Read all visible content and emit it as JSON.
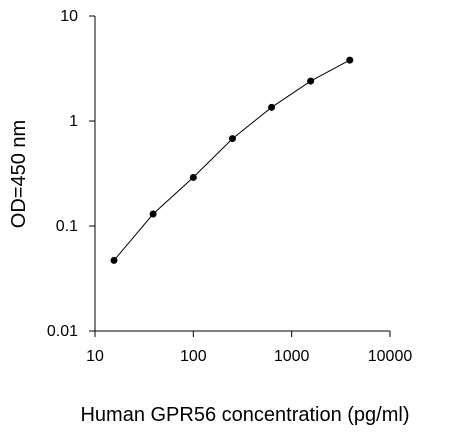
{
  "chart_data": {
    "type": "line",
    "title": "",
    "xlabel": "Human GPR56 concentration (pg/ml)",
    "ylabel": "OD=450 nm",
    "x_scale": "log",
    "y_scale": "log",
    "xlim": [
      10,
      10000
    ],
    "ylim": [
      0.01,
      10
    ],
    "x_ticks": [
      10,
      100,
      1000,
      10000
    ],
    "x_tick_labels": [
      "10",
      "100",
      "1000",
      "10000"
    ],
    "y_ticks": [
      0.01,
      0.1,
      1,
      10
    ],
    "y_tick_labels": [
      "0.01",
      "0.1",
      "1",
      "10"
    ],
    "grid": false,
    "legend": "none",
    "series": [
      {
        "x": [
          15.6,
          39,
          100,
          250,
          625,
          1560,
          3900
        ],
        "y": [
          0.047,
          0.13,
          0.29,
          0.68,
          1.35,
          2.4,
          3.8
        ],
        "color": "#000000",
        "marker": "circle"
      }
    ]
  }
}
